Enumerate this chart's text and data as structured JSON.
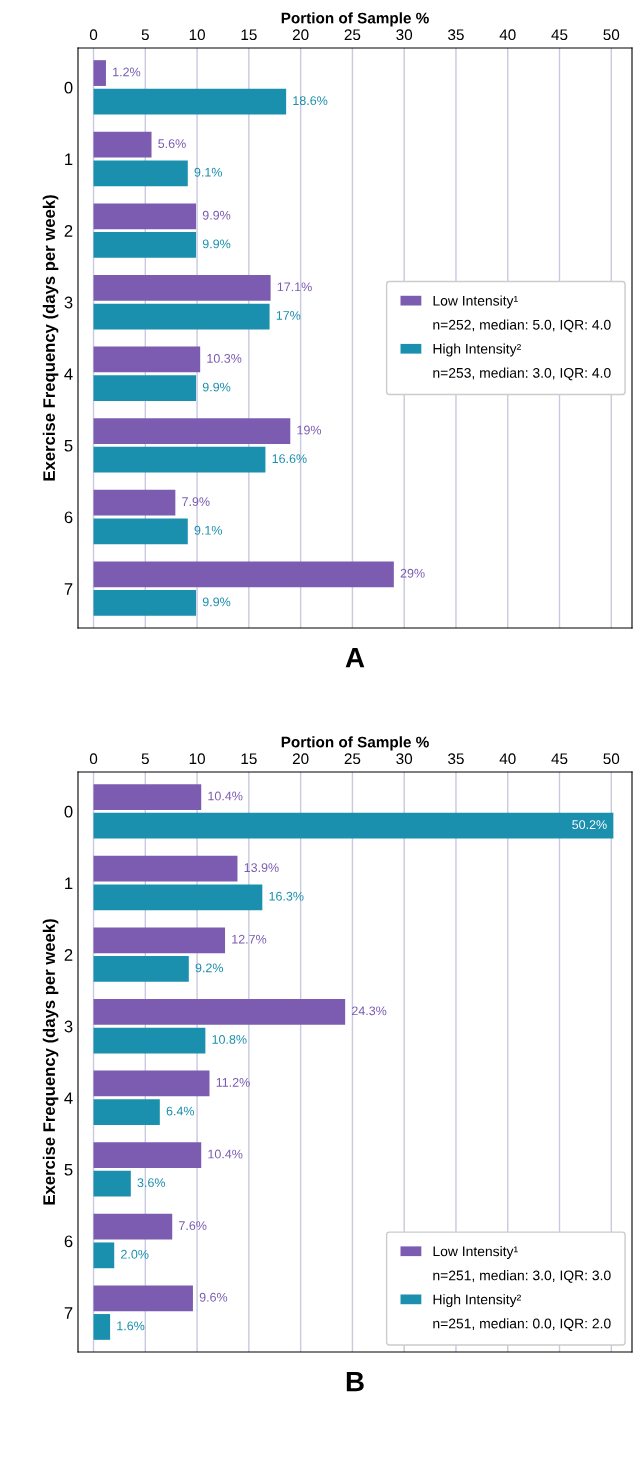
{
  "chart_data": [
    {
      "type": "bar",
      "orientation": "horizontal",
      "title": "A",
      "xlabel": "Portion of Sample %",
      "ylabel": "Exercise Frequency (days per week)",
      "categories": [
        "0",
        "1",
        "2",
        "3",
        "4",
        "5",
        "6",
        "7"
      ],
      "series": [
        {
          "name": "Low Intensity¹",
          "color": "#7b5cb0",
          "values": [
            1.2,
            5.6,
            9.9,
            17.1,
            10.3,
            19,
            7.9,
            29
          ],
          "value_labels": [
            "1.2%",
            "5.6%",
            "9.9%",
            "17.1%",
            "10.3%",
            "19%",
            "7.9%",
            "29%"
          ]
        },
        {
          "name": "High Intensity²",
          "color": "#1a8fae",
          "values": [
            18.6,
            9.1,
            9.9,
            17,
            9.9,
            16.6,
            9.1,
            9.9
          ],
          "value_labels": [
            "18.6%",
            "9.1%",
            "9.9%",
            "17%",
            "9.9%",
            "16.6%",
            "9.1%",
            "9.9%"
          ]
        }
      ],
      "annotations": [
        "n=252, median: 5.0, IQR: 4.0",
        "n=253, median: 3.0, IQR: 4.0"
      ],
      "xlim": [
        -1.5,
        52
      ],
      "xticks": [
        0,
        5,
        10,
        15,
        20,
        25,
        30,
        35,
        40,
        45,
        50
      ],
      "grid": "x",
      "legend": "center right"
    },
    {
      "type": "bar",
      "orientation": "horizontal",
      "title": "B",
      "xlabel": "Portion of Sample %",
      "ylabel": "Exercise Frequency (days per week)",
      "categories": [
        "0",
        "1",
        "2",
        "3",
        "4",
        "5",
        "6",
        "7"
      ],
      "series": [
        {
          "name": "Low Intensity¹",
          "color": "#7b5cb0",
          "values": [
            10.4,
            13.9,
            12.7,
            24.3,
            11.2,
            10.4,
            7.6,
            9.6
          ],
          "value_labels": [
            "10.4%",
            "13.9%",
            "12.7%",
            "24.3%",
            "11.2%",
            "10.4%",
            "7.6%",
            "9.6%"
          ]
        },
        {
          "name": "High Intensity²",
          "color": "#1a8fae",
          "values": [
            50.2,
            16.3,
            9.2,
            10.8,
            6.4,
            3.6,
            2.0,
            1.6
          ],
          "value_labels": [
            "50.2%",
            "16.3%",
            "9.2%",
            "10.8%",
            "6.4%",
            "3.6%",
            "2.0%",
            "1.6%"
          ]
        }
      ],
      "annotations": [
        "n=251, median: 3.0, IQR: 3.0",
        "n=251, median: 0.0, IQR: 2.0"
      ],
      "xlim": [
        -1.5,
        52
      ],
      "xticks": [
        0,
        5,
        10,
        15,
        20,
        25,
        30,
        35,
        40,
        45,
        50
      ],
      "grid": "x",
      "legend": "lower right"
    }
  ]
}
